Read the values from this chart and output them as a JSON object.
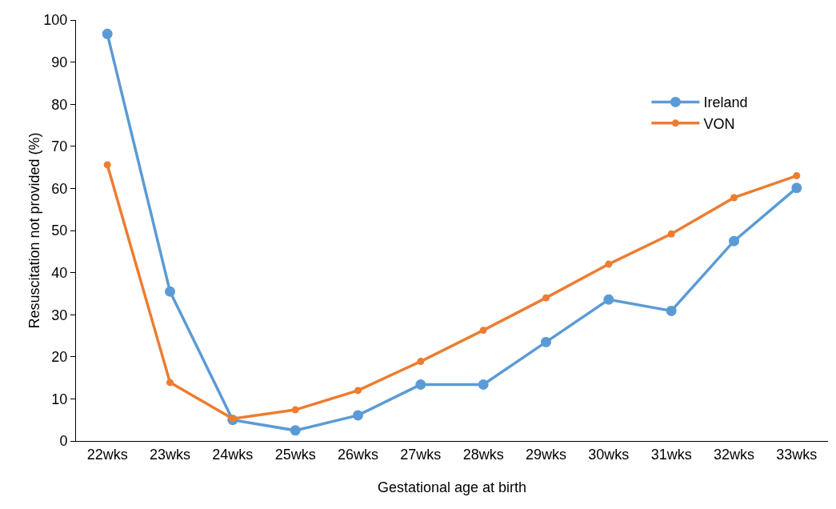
{
  "chart_data": {
    "type": "line",
    "xlabel": "Gestational age at birth",
    "ylabel": "Resuscitation not provided (%)",
    "categories": [
      "22wks",
      "23wks",
      "24wks",
      "25wks",
      "26wks",
      "27wks",
      "28wks",
      "29wks",
      "30wks",
      "31wks",
      "32wks",
      "33wks"
    ],
    "series": [
      {
        "name": "Ireland",
        "color": "#5b9bd5",
        "values": [
          96.7,
          35.5,
          5.0,
          2.5,
          6.1,
          13.4,
          13.4,
          23.5,
          33.6,
          30.9,
          47.5,
          60.1
        ]
      },
      {
        "name": "VON",
        "color": "#ed7d31",
        "values": [
          65.6,
          13.9,
          5.3,
          7.4,
          12.0,
          18.9,
          26.3,
          34.0,
          42.0,
          49.2,
          57.8,
          63.0
        ]
      }
    ],
    "ylim": [
      0,
      100
    ],
    "yticks": [
      0,
      10,
      20,
      30,
      40,
      50,
      60,
      70,
      80,
      90,
      100
    ],
    "grid": false,
    "legend": "right",
    "marker": "circle",
    "line_style": "solid"
  }
}
